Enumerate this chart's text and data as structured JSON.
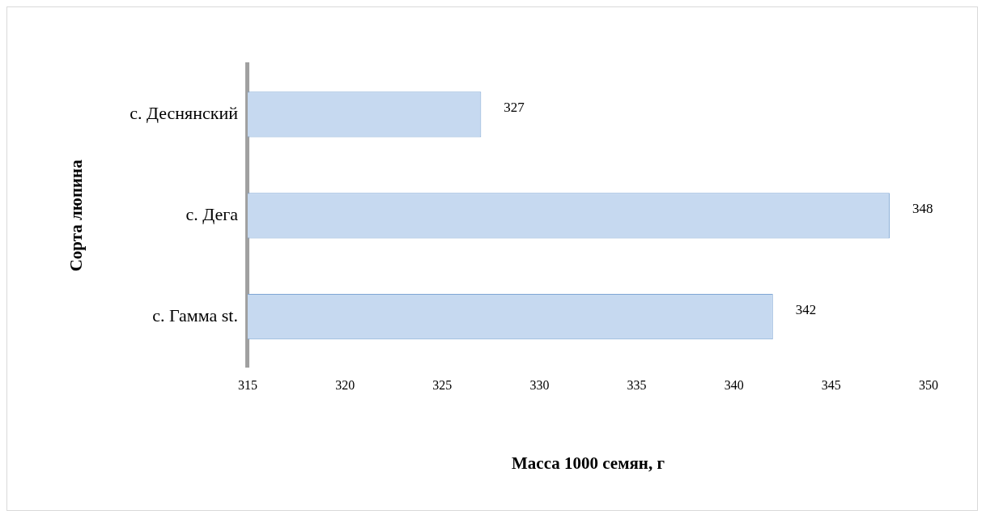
{
  "chart_data": {
    "type": "bar",
    "orientation": "horizontal",
    "xlabel": "Масса 1000 семян, г",
    "ylabel": "Сорта люпина",
    "categories": [
      "с. Деснянский",
      "с. Дега",
      "с. Гамма st."
    ],
    "values": [
      327,
      348,
      342
    ],
    "color": "#c6d9f0",
    "xlim": [
      315,
      350
    ],
    "xticks": [
      315,
      320,
      325,
      330,
      335,
      340,
      345,
      350
    ],
    "data_labels": true,
    "grid": false,
    "legend": false
  }
}
